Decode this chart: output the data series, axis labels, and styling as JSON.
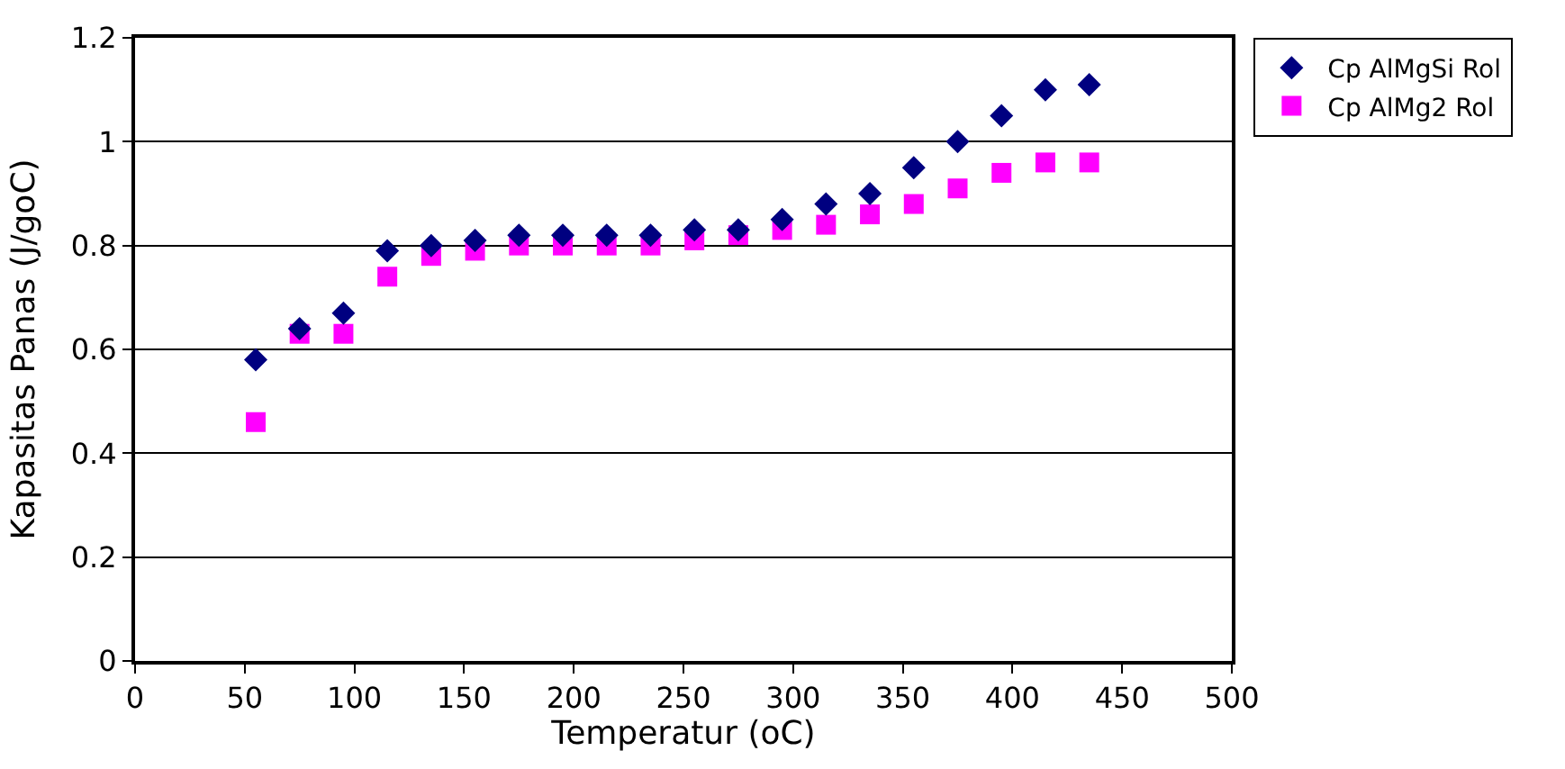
{
  "chart_data": {
    "type": "scatter",
    "xlabel": "Temperatur (oC)",
    "ylabel": "Kapasitas Panas (J/goC)",
    "x": [
      55,
      75,
      95,
      115,
      135,
      155,
      175,
      195,
      215,
      235,
      255,
      275,
      295,
      315,
      335,
      355,
      375,
      395,
      415,
      435
    ],
    "series": [
      {
        "name": "Cp AlMgSi Rol",
        "color": "#000080",
        "marker": "diamond",
        "values": [
          0.58,
          0.64,
          0.67,
          0.79,
          0.8,
          0.81,
          0.82,
          0.82,
          0.82,
          0.82,
          0.83,
          0.83,
          0.85,
          0.88,
          0.9,
          0.95,
          1.0,
          1.05,
          1.1,
          1.11
        ]
      },
      {
        "name": "Cp AlMg2 Rol",
        "color": "#ff00ff",
        "marker": "square",
        "values": [
          0.46,
          0.63,
          0.63,
          0.74,
          0.78,
          0.79,
          0.8,
          0.8,
          0.8,
          0.8,
          0.81,
          0.82,
          0.83,
          0.84,
          0.86,
          0.88,
          0.91,
          0.94,
          0.96,
          0.96
        ]
      }
    ],
    "xlim": [
      0,
      500
    ],
    "xticks": [
      0,
      50,
      100,
      150,
      200,
      250,
      300,
      350,
      400,
      450,
      500
    ],
    "ylim": [
      0,
      1.2
    ],
    "yticks": [
      {
        "value": 0,
        "label": "0"
      },
      {
        "value": 0.2,
        "label": "0.2"
      },
      {
        "value": 0.4,
        "label": "0.4"
      },
      {
        "value": 0.6,
        "label": "0.6"
      },
      {
        "value": 0.8,
        "label": "0.8"
      },
      {
        "value": 1.0,
        "label": "1"
      },
      {
        "value": 1.2,
        "label": "1.2"
      }
    ],
    "grid": "y",
    "legend": "top right"
  }
}
